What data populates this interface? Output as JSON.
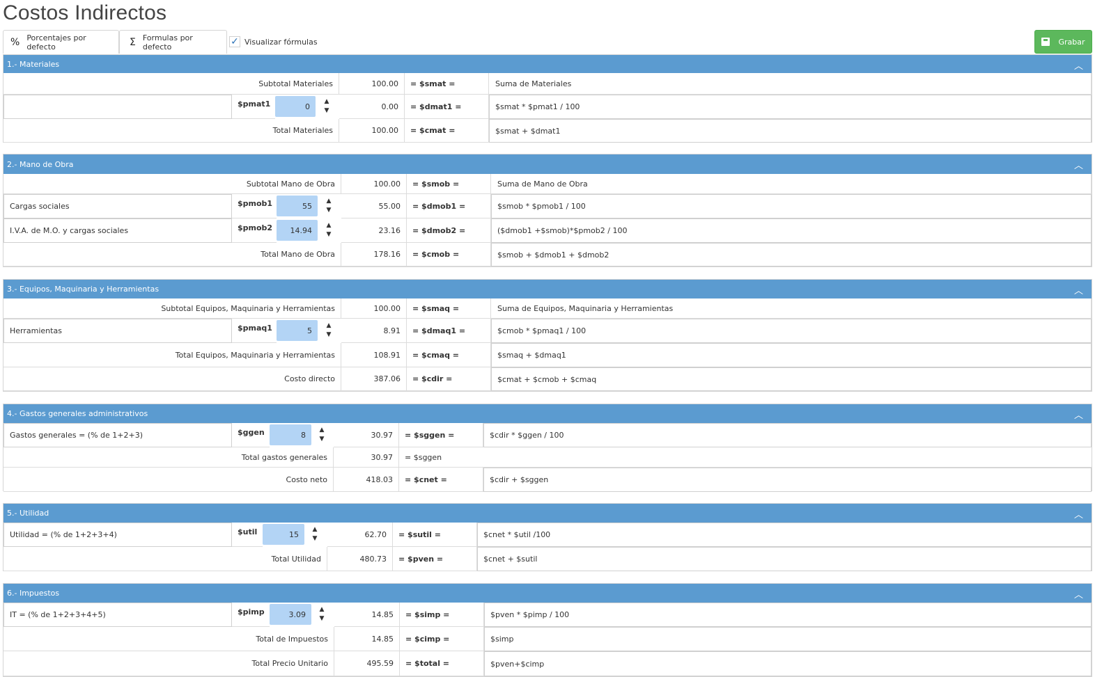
{
  "page": {
    "title": "Costos Indirectos"
  },
  "toolbar": {
    "percentages_label": "Porcentajes por defecto",
    "formulas_label": "Formulas por defecto",
    "show_formulas_label": "Visualizar fórmulas",
    "show_formulas_checked": true,
    "save_label": "Grabar",
    "percent_icon": "%",
    "sigma_icon": "Σ",
    "check_icon": "✓"
  },
  "colors": {
    "header": "#5b9bd0",
    "save": "#5cb85c",
    "spinner": "#b3d4f5"
  },
  "icons": {
    "collapse": "chevron-up-icon",
    "save": "floppy-disk-icon"
  },
  "sections": {
    "materiales": {
      "title": "1.- Materiales",
      "subtotal": {
        "label": "Subtotal Materiales",
        "value": "100.00",
        "var": "= $smat =",
        "formula": "Suma de Materiales"
      },
      "items": [
        {
          "desc": "",
          "var": "$pmat1",
          "input": "0",
          "value": "0.00",
          "result": "= $dmat1 =",
          "formula": "$smat * $pmat1 / 100"
        }
      ],
      "total": {
        "label": "Total Materiales",
        "value": "100.00",
        "var": "= $cmat =",
        "formula": "$smat + $dmat1"
      }
    },
    "mano_obra": {
      "title": "2.- Mano de Obra",
      "subtotal": {
        "label": "Subtotal Mano de Obra",
        "value": "100.00",
        "var": "= $smob =",
        "formula": "Suma de Mano de Obra"
      },
      "items": [
        {
          "desc": "Cargas sociales",
          "var": "$pmob1",
          "input": "55",
          "value": "55.00",
          "result": "= $dmob1 =",
          "formula": "$smob * $pmob1 / 100"
        },
        {
          "desc": "I.V.A. de M.O. y cargas sociales",
          "var": "$pmob2",
          "input": "14.94",
          "value": "23.16",
          "result": "= $dmob2 =",
          "formula": "($dmob1 +$smob)*$pmob2 / 100"
        }
      ],
      "total": {
        "label": "Total Mano de Obra",
        "value": "178.16",
        "var": "= $cmob =",
        "formula": "$smob + $dmob1 + $dmob2"
      }
    },
    "equipos": {
      "title": "3.- Equipos, Maquinaria y Herramientas",
      "subtotal": {
        "label": "Subtotal Equipos, Maquinaria y Herramientas",
        "value": "100.00",
        "var": "= $smaq =",
        "formula": "Suma de Equipos, Maquinaria y Herramientas"
      },
      "items": [
        {
          "desc": "Herramientas",
          "var": "$pmaq1",
          "input": "5",
          "value": "8.91",
          "result": "= $dmaq1 =",
          "formula": "$cmob * $pmaq1 / 100"
        }
      ],
      "total": {
        "label": "Total Equipos, Maquinaria y Herramientas",
        "value": "108.91",
        "var": "= $cmaq =",
        "formula": "$smaq + $dmaq1"
      },
      "direct": {
        "label": "Costo directo",
        "value": "387.06",
        "var": "= $cdir =",
        "formula": "$cmat + $cmob + $cmaq"
      }
    },
    "gastos": {
      "title": "4.- Gastos generales administrativos",
      "items": [
        {
          "desc": "Gastos generales = (% de 1+2+3)",
          "var": "$ggen",
          "input": "8",
          "value": "30.97",
          "result": "= $sggen =",
          "formula": "$cdir * $ggen / 100"
        }
      ],
      "total": {
        "label": "Total gastos generales",
        "value": "30.97",
        "var": "= $sggen"
      },
      "net": {
        "label": "Costo neto",
        "value": "418.03",
        "var": "= $cnet =",
        "formula": "$cdir + $sggen"
      }
    },
    "utilidad": {
      "title": "5.- Utilidad",
      "items": [
        {
          "desc": "Utilidad = (% de 1+2+3+4)",
          "var": "$util",
          "input": "15",
          "value": "62.70",
          "result": "= $sutil =",
          "formula": "$cnet * $util /100"
        }
      ],
      "total": {
        "label": "Total Utilidad",
        "value": "480.73",
        "var": "= $pven =",
        "formula": "$cnet + $sutil"
      }
    },
    "impuestos": {
      "title": "6.- Impuestos",
      "items": [
        {
          "desc": "IT = (% de 1+2+3+4+5)",
          "var": "$pimp",
          "input": "3.09",
          "value": "14.85",
          "result": "= $simp =",
          "formula": "$pven * $pimp / 100"
        }
      ],
      "total": {
        "label": "Total de Impuestos",
        "value": "14.85",
        "var": "= $cimp =",
        "formula": "$simp"
      },
      "unit": {
        "label": "Total Precio Unitario",
        "value": "495.59",
        "var": "= $total =",
        "formula": "$pven+$cimp"
      }
    }
  }
}
